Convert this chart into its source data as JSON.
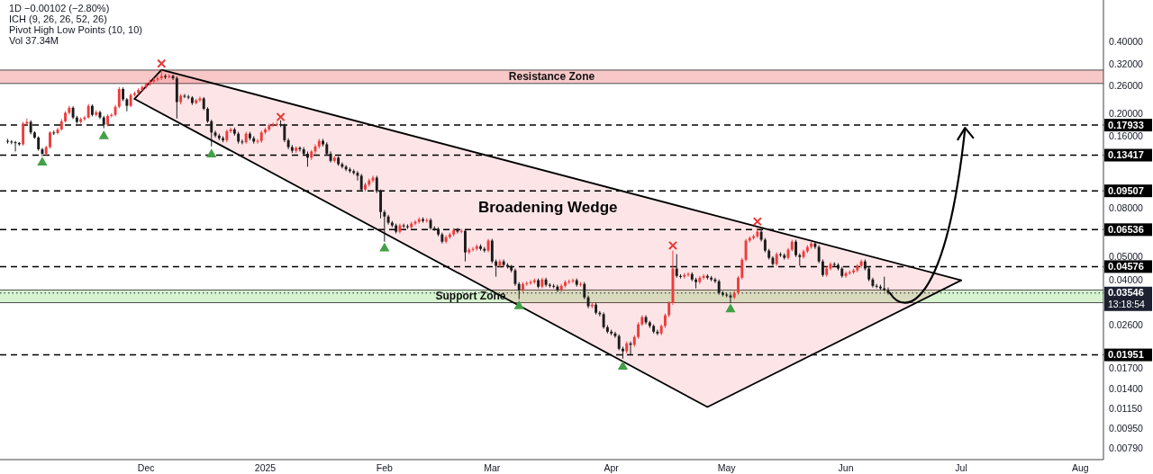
{
  "chart_data": {
    "type": "candlestick",
    "title": "1D −0.00102 (−2.80%)",
    "annotations": [
      "ICH (9, 26, 26, 52, 26)",
      "Pivot High Low Points (10, 10)",
      "Vol 37.34M"
    ],
    "log": "y",
    "xlim": [
      "2024-10-24",
      "2025-08-07"
    ],
    "xticks": [
      {
        "value": "2024-12-01",
        "label": "Dec"
      },
      {
        "value": "2025-01-01",
        "label": "2025"
      },
      {
        "value": "2025-02-01",
        "label": "Feb"
      },
      {
        "value": "2025-03-01",
        "label": "Mar"
      },
      {
        "value": "2025-04-01",
        "label": "Apr"
      },
      {
        "value": "2025-05-01",
        "label": "May"
      },
      {
        "value": "2025-06-01",
        "label": "Jun"
      },
      {
        "value": "2025-07-01",
        "label": "Jul"
      },
      {
        "value": "2025-08-01",
        "label": "Aug"
      }
    ],
    "ylim": [
      0.0071,
      0.6
    ],
    "yticks": [
      {
        "value": 0.4,
        "label": "0.40000"
      },
      {
        "value": 0.32,
        "label": "0.32000"
      },
      {
        "value": 0.26,
        "label": "0.26000"
      },
      {
        "value": 0.2,
        "label": "0.20000"
      },
      {
        "value": 0.16,
        "label": "0.16000"
      },
      {
        "value": 0.08,
        "label": "0.08000"
      },
      {
        "value": 0.05,
        "label": "0.05000"
      },
      {
        "value": 0.04,
        "label": "0.04000"
      },
      {
        "value": 0.026,
        "label": "0.02600"
      },
      {
        "value": 0.017,
        "label": "0.01700"
      },
      {
        "value": 0.014,
        "label": "0.01400"
      },
      {
        "value": 0.0115,
        "label": "0.01150"
      },
      {
        "value": 0.0095,
        "label": "0.00950"
      },
      {
        "value": 0.0079,
        "label": "0.00790"
      }
    ],
    "x": [
      "2024-10-26",
      "2024-10-27",
      "2024-10-28",
      "2024-10-29",
      "2024-10-30",
      "2024-10-31",
      "2024-11-01",
      "2024-11-02",
      "2024-11-03",
      "2024-11-04",
      "2024-11-05",
      "2024-11-06",
      "2024-11-07",
      "2024-11-08",
      "2024-11-09",
      "2024-11-10",
      "2024-11-11",
      "2024-11-12",
      "2024-11-13",
      "2024-11-14",
      "2024-11-15",
      "2024-11-16",
      "2024-11-17",
      "2024-11-18",
      "2024-11-19",
      "2024-11-20",
      "2024-11-21",
      "2024-11-22",
      "2024-11-23",
      "2024-11-24",
      "2024-11-25",
      "2024-11-26",
      "2024-11-27",
      "2024-11-28",
      "2024-11-29",
      "2024-11-30",
      "2024-12-01",
      "2024-12-02",
      "2024-12-03",
      "2024-12-04",
      "2024-12-05",
      "2024-12-06",
      "2024-12-07",
      "2024-12-08",
      "2024-12-09",
      "2024-12-10",
      "2024-12-11",
      "2024-12-12",
      "2024-12-13",
      "2024-12-14",
      "2024-12-15",
      "2024-12-16",
      "2024-12-17",
      "2024-12-18",
      "2024-12-19",
      "2024-12-20",
      "2024-12-21",
      "2024-12-22",
      "2024-12-23",
      "2024-12-24",
      "2024-12-25",
      "2024-12-26",
      "2024-12-27",
      "2024-12-28",
      "2024-12-29",
      "2024-12-30",
      "2024-12-31",
      "2025-01-01",
      "2025-01-02",
      "2025-01-03",
      "2025-01-04",
      "2025-01-05",
      "2025-01-06",
      "2025-01-07",
      "2025-01-08",
      "2025-01-09",
      "2025-01-10",
      "2025-01-11",
      "2025-01-12",
      "2025-01-13",
      "2025-01-14",
      "2025-01-15",
      "2025-01-16",
      "2025-01-17",
      "2025-01-18",
      "2025-01-19",
      "2025-01-20",
      "2025-01-21",
      "2025-01-22",
      "2025-01-23",
      "2025-01-24",
      "2025-01-25",
      "2025-01-26",
      "2025-01-27",
      "2025-01-28",
      "2025-01-29",
      "2025-01-30",
      "2025-01-31",
      "2025-02-01",
      "2025-02-02",
      "2025-02-03",
      "2025-02-04",
      "2025-02-05",
      "2025-02-06",
      "2025-02-07",
      "2025-02-08",
      "2025-02-09",
      "2025-02-10",
      "2025-02-11",
      "2025-02-12",
      "2025-02-13",
      "2025-02-14",
      "2025-02-15",
      "2025-02-16",
      "2025-02-17",
      "2025-02-18",
      "2025-02-19",
      "2025-02-20",
      "2025-02-21",
      "2025-02-22",
      "2025-02-23",
      "2025-02-24",
      "2025-02-25",
      "2025-02-26",
      "2025-02-27",
      "2025-02-28",
      "2025-03-01",
      "2025-03-02",
      "2025-03-03",
      "2025-03-04",
      "2025-03-05",
      "2025-03-06",
      "2025-03-07",
      "2025-03-08",
      "2025-03-09",
      "2025-03-10",
      "2025-03-11",
      "2025-03-12",
      "2025-03-13",
      "2025-03-14",
      "2025-03-15",
      "2025-03-16",
      "2025-03-17",
      "2025-03-18",
      "2025-03-19",
      "2025-03-20",
      "2025-03-21",
      "2025-03-22",
      "2025-03-23",
      "2025-03-24",
      "2025-03-25",
      "2025-03-26",
      "2025-03-27",
      "2025-03-28",
      "2025-03-29",
      "2025-03-30",
      "2025-03-31",
      "2025-04-01",
      "2025-04-02",
      "2025-04-03",
      "2025-04-04",
      "2025-04-05",
      "2025-04-06",
      "2025-04-07",
      "2025-04-08",
      "2025-04-09",
      "2025-04-10",
      "2025-04-11",
      "2025-04-12",
      "2025-04-13",
      "2025-04-14",
      "2025-04-15",
      "2025-04-16",
      "2025-04-17",
      "2025-04-18",
      "2025-04-19",
      "2025-04-20",
      "2025-04-21",
      "2025-04-22",
      "2025-04-23",
      "2025-04-24",
      "2025-04-25",
      "2025-04-26",
      "2025-04-27",
      "2025-04-28",
      "2025-04-29",
      "2025-04-30",
      "2025-05-01",
      "2025-05-02",
      "2025-05-03",
      "2025-05-04",
      "2025-05-05",
      "2025-05-06",
      "2025-05-07",
      "2025-05-08",
      "2025-05-09",
      "2025-05-10",
      "2025-05-11",
      "2025-05-12",
      "2025-05-13",
      "2025-05-14",
      "2025-05-15",
      "2025-05-16",
      "2025-05-17",
      "2025-05-18",
      "2025-05-19",
      "2025-05-20",
      "2025-05-21",
      "2025-05-22",
      "2025-05-23",
      "2025-05-24",
      "2025-05-25",
      "2025-05-26",
      "2025-05-27",
      "2025-05-28",
      "2025-05-29",
      "2025-05-30",
      "2025-05-31",
      "2025-06-01",
      "2025-06-02",
      "2025-06-03",
      "2025-06-04",
      "2025-06-05",
      "2025-06-06",
      "2025-06-07",
      "2025-06-08",
      "2025-06-09",
      "2025-06-10",
      "2025-06-11",
      "2025-06-12"
    ],
    "ohlc": [
      [
        0.154,
        0.157,
        0.15,
        0.153
      ],
      [
        0.153,
        0.155,
        0.149,
        0.152
      ],
      [
        0.152,
        0.154,
        0.139,
        0.151
      ],
      [
        0.151,
        0.152,
        0.147,
        0.149
      ],
      [
        0.149,
        0.185,
        0.147,
        0.182
      ],
      [
        0.182,
        0.191,
        0.179,
        0.185
      ],
      [
        0.185,
        0.188,
        0.164,
        0.167
      ],
      [
        0.167,
        0.169,
        0.157,
        0.159
      ],
      [
        0.159,
        0.161,
        0.14,
        0.142
      ],
      [
        0.142,
        0.144,
        0.133,
        0.136
      ],
      [
        0.136,
        0.147,
        0.134,
        0.145
      ],
      [
        0.145,
        0.169,
        0.143,
        0.167
      ],
      [
        0.167,
        0.17,
        0.163,
        0.166
      ],
      [
        0.166,
        0.175,
        0.164,
        0.172
      ],
      [
        0.172,
        0.19,
        0.17,
        0.186
      ],
      [
        0.186,
        0.205,
        0.184,
        0.202
      ],
      [
        0.202,
        0.216,
        0.199,
        0.212
      ],
      [
        0.212,
        0.215,
        0.19,
        0.193
      ],
      [
        0.193,
        0.196,
        0.182,
        0.185
      ],
      [
        0.185,
        0.193,
        0.182,
        0.19
      ],
      [
        0.19,
        0.196,
        0.187,
        0.193
      ],
      [
        0.193,
        0.22,
        0.191,
        0.216
      ],
      [
        0.216,
        0.219,
        0.195,
        0.198
      ],
      [
        0.198,
        0.207,
        0.195,
        0.203
      ],
      [
        0.203,
        0.206,
        0.19,
        0.193
      ],
      [
        0.193,
        0.196,
        0.174,
        0.18
      ],
      [
        0.18,
        0.199,
        0.177,
        0.196
      ],
      [
        0.196,
        0.201,
        0.193,
        0.198
      ],
      [
        0.198,
        0.218,
        0.195,
        0.214
      ],
      [
        0.214,
        0.259,
        0.211,
        0.254
      ],
      [
        0.254,
        0.258,
        0.226,
        0.23
      ],
      [
        0.23,
        0.233,
        0.205,
        0.216
      ],
      [
        0.216,
        0.244,
        0.213,
        0.24
      ],
      [
        0.24,
        0.248,
        0.236,
        0.244
      ],
      [
        0.244,
        0.256,
        0.24,
        0.252
      ],
      [
        0.252,
        0.263,
        0.248,
        0.259
      ],
      [
        0.259,
        0.27,
        0.255,
        0.266
      ],
      [
        0.266,
        0.278,
        0.262,
        0.273
      ],
      [
        0.273,
        0.283,
        0.268,
        0.278
      ],
      [
        0.278,
        0.287,
        0.273,
        0.282
      ],
      [
        0.282,
        0.306,
        0.277,
        0.288
      ],
      [
        0.288,
        0.293,
        0.28,
        0.285
      ],
      [
        0.285,
        0.293,
        0.281,
        0.288
      ],
      [
        0.288,
        0.292,
        0.277,
        0.282
      ],
      [
        0.282,
        0.287,
        0.191,
        0.224
      ],
      [
        0.224,
        0.242,
        0.219,
        0.238
      ],
      [
        0.238,
        0.242,
        0.233,
        0.236
      ],
      [
        0.236,
        0.24,
        0.23,
        0.234
      ],
      [
        0.234,
        0.237,
        0.218,
        0.222
      ],
      [
        0.222,
        0.231,
        0.219,
        0.228
      ],
      [
        0.228,
        0.236,
        0.224,
        0.232
      ],
      [
        0.232,
        0.235,
        0.207,
        0.21
      ],
      [
        0.21,
        0.213,
        0.183,
        0.186
      ],
      [
        0.186,
        0.189,
        0.146,
        0.167
      ],
      [
        0.167,
        0.17,
        0.159,
        0.162
      ],
      [
        0.162,
        0.165,
        0.155,
        0.158
      ],
      [
        0.158,
        0.161,
        0.152,
        0.155
      ],
      [
        0.155,
        0.172,
        0.152,
        0.169
      ],
      [
        0.169,
        0.175,
        0.166,
        0.172
      ],
      [
        0.172,
        0.175,
        0.162,
        0.165
      ],
      [
        0.165,
        0.168,
        0.15,
        0.153
      ],
      [
        0.153,
        0.156,
        0.149,
        0.152
      ],
      [
        0.152,
        0.168,
        0.15,
        0.165
      ],
      [
        0.165,
        0.168,
        0.155,
        0.158
      ],
      [
        0.158,
        0.161,
        0.15,
        0.153
      ],
      [
        0.153,
        0.157,
        0.15,
        0.154
      ],
      [
        0.154,
        0.17,
        0.151,
        0.167
      ],
      [
        0.167,
        0.175,
        0.164,
        0.172
      ],
      [
        0.172,
        0.182,
        0.169,
        0.179
      ],
      [
        0.179,
        0.184,
        0.176,
        0.18
      ],
      [
        0.18,
        0.185,
        0.177,
        0.181
      ],
      [
        0.181,
        0.188,
        0.176,
        0.179
      ],
      [
        0.179,
        0.182,
        0.152,
        0.155
      ],
      [
        0.155,
        0.158,
        0.142,
        0.145
      ],
      [
        0.145,
        0.148,
        0.137,
        0.14
      ],
      [
        0.14,
        0.146,
        0.137,
        0.144
      ],
      [
        0.144,
        0.146,
        0.139,
        0.142
      ],
      [
        0.142,
        0.145,
        0.134,
        0.136
      ],
      [
        0.136,
        0.139,
        0.12,
        0.131
      ],
      [
        0.131,
        0.141,
        0.128,
        0.139
      ],
      [
        0.139,
        0.149,
        0.136,
        0.146
      ],
      [
        0.146,
        0.157,
        0.143,
        0.154
      ],
      [
        0.154,
        0.157,
        0.146,
        0.149
      ],
      [
        0.149,
        0.152,
        0.134,
        0.136
      ],
      [
        0.136,
        0.139,
        0.125,
        0.127
      ],
      [
        0.127,
        0.133,
        0.125,
        0.131
      ],
      [
        0.131,
        0.133,
        0.121,
        0.123
      ],
      [
        0.123,
        0.125,
        0.118,
        0.12
      ],
      [
        0.12,
        0.122,
        0.115,
        0.117
      ],
      [
        0.117,
        0.119,
        0.113,
        0.115
      ],
      [
        0.115,
        0.117,
        0.111,
        0.113
      ],
      [
        0.113,
        0.115,
        0.105,
        0.11
      ],
      [
        0.11,
        0.112,
        0.0946,
        0.0963
      ],
      [
        0.0963,
        0.103,
        0.0946,
        0.101
      ],
      [
        0.101,
        0.107,
        0.099,
        0.105
      ],
      [
        0.105,
        0.11,
        0.103,
        0.108
      ],
      [
        0.108,
        0.11,
        0.093,
        0.0947
      ],
      [
        0.0947,
        0.0963,
        0.0729,
        0.0775
      ],
      [
        0.0775,
        0.079,
        0.0582,
        0.0742
      ],
      [
        0.0742,
        0.0755,
        0.0687,
        0.0699
      ],
      [
        0.0699,
        0.0711,
        0.0669,
        0.0681
      ],
      [
        0.0681,
        0.0693,
        0.063,
        0.0641
      ],
      [
        0.0641,
        0.0693,
        0.063,
        0.0681
      ],
      [
        0.0681,
        0.0693,
        0.0664,
        0.0676
      ],
      [
        0.0676,
        0.0688,
        0.0658,
        0.0669
      ],
      [
        0.0669,
        0.0705,
        0.0658,
        0.0693
      ],
      [
        0.0693,
        0.0717,
        0.0681,
        0.0705
      ],
      [
        0.0705,
        0.0736,
        0.0693,
        0.0723
      ],
      [
        0.0723,
        0.0736,
        0.0699,
        0.0711
      ],
      [
        0.0711,
        0.073,
        0.0699,
        0.0717
      ],
      [
        0.0717,
        0.073,
        0.0652,
        0.0663
      ],
      [
        0.0663,
        0.0675,
        0.0646,
        0.0658
      ],
      [
        0.0658,
        0.0669,
        0.0613,
        0.0624
      ],
      [
        0.0624,
        0.0635,
        0.0572,
        0.0582
      ],
      [
        0.0582,
        0.0619,
        0.0572,
        0.0608
      ],
      [
        0.0608,
        0.0635,
        0.0598,
        0.0624
      ],
      [
        0.0624,
        0.0664,
        0.0613,
        0.0652
      ],
      [
        0.0652,
        0.0664,
        0.063,
        0.0641
      ],
      [
        0.0641,
        0.0658,
        0.063,
        0.0646
      ],
      [
        0.0646,
        0.0658,
        0.0481,
        0.0525
      ],
      [
        0.0525,
        0.0548,
        0.0516,
        0.0539
      ],
      [
        0.0539,
        0.0553,
        0.053,
        0.0543
      ],
      [
        0.0543,
        0.0567,
        0.0534,
        0.0557
      ],
      [
        0.0557,
        0.0567,
        0.0534,
        0.0543
      ],
      [
        0.0543,
        0.0553,
        0.0525,
        0.0534
      ],
      [
        0.0534,
        0.0598,
        0.0525,
        0.0588
      ],
      [
        0.0588,
        0.0598,
        0.0473,
        0.0481
      ],
      [
        0.0481,
        0.049,
        0.0415,
        0.0461
      ],
      [
        0.0461,
        0.049,
        0.0453,
        0.0481
      ],
      [
        0.0481,
        0.049,
        0.0457,
        0.0465
      ],
      [
        0.0465,
        0.0473,
        0.0449,
        0.0457
      ],
      [
        0.0457,
        0.0465,
        0.0433,
        0.0441
      ],
      [
        0.0441,
        0.0449,
        0.038,
        0.0387
      ],
      [
        0.0387,
        0.0394,
        0.0334,
        0.0365
      ],
      [
        0.0365,
        0.0394,
        0.0358,
        0.0387
      ],
      [
        0.0387,
        0.0397,
        0.038,
        0.039
      ],
      [
        0.039,
        0.0401,
        0.0384,
        0.0394
      ],
      [
        0.0394,
        0.0408,
        0.0387,
        0.0401
      ],
      [
        0.0401,
        0.0408,
        0.0371,
        0.0377
      ],
      [
        0.0377,
        0.0411,
        0.0371,
        0.0404
      ],
      [
        0.0404,
        0.0411,
        0.0377,
        0.0384
      ],
      [
        0.0384,
        0.039,
        0.0374,
        0.038
      ],
      [
        0.038,
        0.0387,
        0.0371,
        0.0377
      ],
      [
        0.0377,
        0.0384,
        0.0358,
        0.0365
      ],
      [
        0.0365,
        0.0387,
        0.0358,
        0.038
      ],
      [
        0.038,
        0.0401,
        0.0374,
        0.0394
      ],
      [
        0.0394,
        0.0404,
        0.0387,
        0.0397
      ],
      [
        0.0397,
        0.0408,
        0.039,
        0.0401
      ],
      [
        0.0401,
        0.0408,
        0.0377,
        0.0384
      ],
      [
        0.0384,
        0.0394,
        0.0377,
        0.0387
      ],
      [
        0.0387,
        0.0394,
        0.0334,
        0.034
      ],
      [
        0.034,
        0.0346,
        0.0306,
        0.0312
      ],
      [
        0.0312,
        0.0323,
        0.0306,
        0.0317
      ],
      [
        0.0317,
        0.0323,
        0.0288,
        0.0293
      ],
      [
        0.0293,
        0.0298,
        0.0283,
        0.0289
      ],
      [
        0.0289,
        0.0294,
        0.0251,
        0.0255
      ],
      [
        0.0255,
        0.026,
        0.024,
        0.0244
      ],
      [
        0.0244,
        0.0249,
        0.0236,
        0.024
      ],
      [
        0.024,
        0.0244,
        0.023,
        0.0234
      ],
      [
        0.0234,
        0.0238,
        0.0204,
        0.0207
      ],
      [
        0.0207,
        0.0211,
        0.0188,
        0.0202
      ],
      [
        0.0202,
        0.0222,
        0.0198,
        0.0218
      ],
      [
        0.0218,
        0.0222,
        0.0196,
        0.0215
      ],
      [
        0.0215,
        0.0236,
        0.0211,
        0.0232
      ],
      [
        0.0232,
        0.0267,
        0.0228,
        0.0262
      ],
      [
        0.0262,
        0.0286,
        0.0258,
        0.0281
      ],
      [
        0.0281,
        0.0286,
        0.0262,
        0.0267
      ],
      [
        0.0267,
        0.0271,
        0.0253,
        0.0258
      ],
      [
        0.0258,
        0.0262,
        0.024,
        0.0244
      ],
      [
        0.0244,
        0.0249,
        0.0236,
        0.024
      ],
      [
        0.024,
        0.0262,
        0.0236,
        0.0258
      ],
      [
        0.0258,
        0.0291,
        0.0253,
        0.0286
      ],
      [
        0.0286,
        0.0327,
        0.0281,
        0.0322
      ],
      [
        0.0322,
        0.0534,
        0.0316,
        0.0449
      ],
      [
        0.0449,
        0.0516,
        0.0411,
        0.0418
      ],
      [
        0.0418,
        0.0425,
        0.0408,
        0.0415
      ],
      [
        0.0415,
        0.043,
        0.0408,
        0.0422
      ],
      [
        0.0422,
        0.0433,
        0.0415,
        0.0426
      ],
      [
        0.0426,
        0.0433,
        0.0397,
        0.0404
      ],
      [
        0.0404,
        0.0411,
        0.0371,
        0.0394
      ],
      [
        0.0394,
        0.0418,
        0.0387,
        0.0411
      ],
      [
        0.0411,
        0.0425,
        0.0404,
        0.0418
      ],
      [
        0.0418,
        0.0425,
        0.0404,
        0.0411
      ],
      [
        0.0411,
        0.0418,
        0.0397,
        0.0404
      ],
      [
        0.0404,
        0.0411,
        0.039,
        0.0397
      ],
      [
        0.0397,
        0.0404,
        0.0349,
        0.0355
      ],
      [
        0.0355,
        0.0361,
        0.0343,
        0.0349
      ],
      [
        0.0349,
        0.0355,
        0.034,
        0.0346
      ],
      [
        0.0346,
        0.0352,
        0.0322,
        0.034
      ],
      [
        0.034,
        0.0361,
        0.0334,
        0.0355
      ],
      [
        0.0355,
        0.0418,
        0.0349,
        0.0411
      ],
      [
        0.0411,
        0.0498,
        0.0404,
        0.0489
      ],
      [
        0.0489,
        0.0598,
        0.0481,
        0.0588
      ],
      [
        0.0588,
        0.0613,
        0.0578,
        0.0603
      ],
      [
        0.0603,
        0.0624,
        0.0593,
        0.0613
      ],
      [
        0.0613,
        0.0663,
        0.0603,
        0.0641
      ],
      [
        0.0641,
        0.0652,
        0.0583,
        0.0593
      ],
      [
        0.0593,
        0.0603,
        0.0525,
        0.0534
      ],
      [
        0.0534,
        0.0543,
        0.049,
        0.0498
      ],
      [
        0.0498,
        0.0506,
        0.0461,
        0.0469
      ],
      [
        0.0469,
        0.0525,
        0.0461,
        0.0516
      ],
      [
        0.0516,
        0.0525,
        0.0502,
        0.0511
      ],
      [
        0.0511,
        0.052,
        0.049,
        0.0498
      ],
      [
        0.0498,
        0.0548,
        0.049,
        0.0539
      ],
      [
        0.0539,
        0.0593,
        0.053,
        0.0582
      ],
      [
        0.0582,
        0.0593,
        0.0502,
        0.0511
      ],
      [
        0.0511,
        0.052,
        0.0461,
        0.0502
      ],
      [
        0.0502,
        0.0539,
        0.0494,
        0.053
      ],
      [
        0.053,
        0.0563,
        0.0521,
        0.0553
      ],
      [
        0.0553,
        0.0583,
        0.0543,
        0.0572
      ],
      [
        0.0572,
        0.0583,
        0.0543,
        0.0553
      ],
      [
        0.0553,
        0.0563,
        0.0473,
        0.0481
      ],
      [
        0.0481,
        0.049,
        0.0415,
        0.0422
      ],
      [
        0.0422,
        0.0457,
        0.0415,
        0.0449
      ],
      [
        0.0449,
        0.0477,
        0.0441,
        0.0469
      ],
      [
        0.0469,
        0.0477,
        0.0457,
        0.0465
      ],
      [
        0.0465,
        0.0473,
        0.0441,
        0.0449
      ],
      [
        0.0449,
        0.0457,
        0.0411,
        0.0418
      ],
      [
        0.0418,
        0.0437,
        0.0411,
        0.0429
      ],
      [
        0.0429,
        0.0441,
        0.0422,
        0.0433
      ],
      [
        0.0433,
        0.0449,
        0.0426,
        0.0441
      ],
      [
        0.0441,
        0.0469,
        0.0433,
        0.0461
      ],
      [
        0.0461,
        0.049,
        0.0453,
        0.0481
      ],
      [
        0.0481,
        0.049,
        0.0441,
        0.0449
      ],
      [
        0.0449,
        0.0457,
        0.0397,
        0.0404
      ],
      [
        0.0404,
        0.0411,
        0.0374,
        0.038
      ],
      [
        0.038,
        0.0387,
        0.0371,
        0.0377
      ],
      [
        0.0377,
        0.0384,
        0.0365,
        0.0371
      ],
      [
        0.0371,
        0.0415,
        0.0361,
        0.03648
      ],
      [
        0.03648,
        0.0374,
        0.0349,
        0.03546
      ]
    ],
    "series": [
      {
        "type": "line",
        "name": "Broadening Wedge",
        "color": "#000000",
        "x": [
          "2024-11-28",
          "2024-12-05",
          "2025-04-26",
          "2025-07-01"
        ],
        "values": [
          0.231,
          0.306,
          0.0764,
          0.0401
        ],
        "lower": [
          0.231,
          0.201,
          0.0118,
          0.0401
        ],
        "upper": [
          0.231,
          0.306,
          0.0764,
          0.0401
        ]
      },
      {
        "type": "line",
        "color": "#000000",
        "x": [
          "2024-11-28",
          "2025-04-26",
          "2025-07-01"
        ],
        "values": [
          0.231,
          0.0118,
          0.0401
        ]
      },
      {
        "type": "scatter",
        "marker": "cross",
        "color": "#e53935",
        "x": [
          "2024-12-05",
          "2025-01-05",
          "2025-04-17",
          "2025-05-09"
        ],
        "values": [
          0.325,
          0.194,
          0.0561,
          0.0707
        ]
      },
      {
        "type": "scatter",
        "marker": "triangle",
        "color": "#43a047",
        "x": [
          "2024-11-04",
          "2024-11-20",
          "2024-12-18",
          "2025-02-01",
          "2025-03-08",
          "2025-04-04",
          "2025-05-02"
        ],
        "values": [
          0.125,
          0.161,
          0.135,
          0.0545,
          0.0312,
          0.0174,
          0.0303
        ]
      }
    ],
    "bands": [
      {
        "axis": "y",
        "from": 0.268,
        "to": 0.305,
        "label": "Resistance Zone",
        "color": "#f8c8c8"
      },
      {
        "axis": "y",
        "from": 0.0323,
        "to": 0.0365,
        "label": "Support Zone",
        "color": "#d6f2cf"
      }
    ],
    "ref_lines": [
      {
        "axis": "y",
        "value": 0.17933,
        "label": "0.17933",
        "line_style": "dashed",
        "color": "#000000"
      },
      {
        "axis": "y",
        "value": 0.13417,
        "label": "0.13417",
        "line_style": "dashed",
        "color": "#000000"
      },
      {
        "axis": "y",
        "value": 0.09507,
        "label": "0.09507",
        "line_style": "dashed",
        "color": "#000000"
      },
      {
        "axis": "y",
        "value": 0.06536,
        "label": "0.06536",
        "line_style": "dashed",
        "color": "#000000"
      },
      {
        "axis": "y",
        "value": 0.04576,
        "label": "0.04576",
        "line_style": "dashed",
        "color": "#000000"
      },
      {
        "axis": "y",
        "value": 0.01951,
        "label": "0.01951",
        "line_style": "dashed",
        "color": "#000000"
      },
      {
        "axis": "y",
        "value": 0.03546,
        "label": "0.03546\n13:18:54",
        "line_style": "dotted",
        "color": "#1c2030"
      }
    ]
  }
}
